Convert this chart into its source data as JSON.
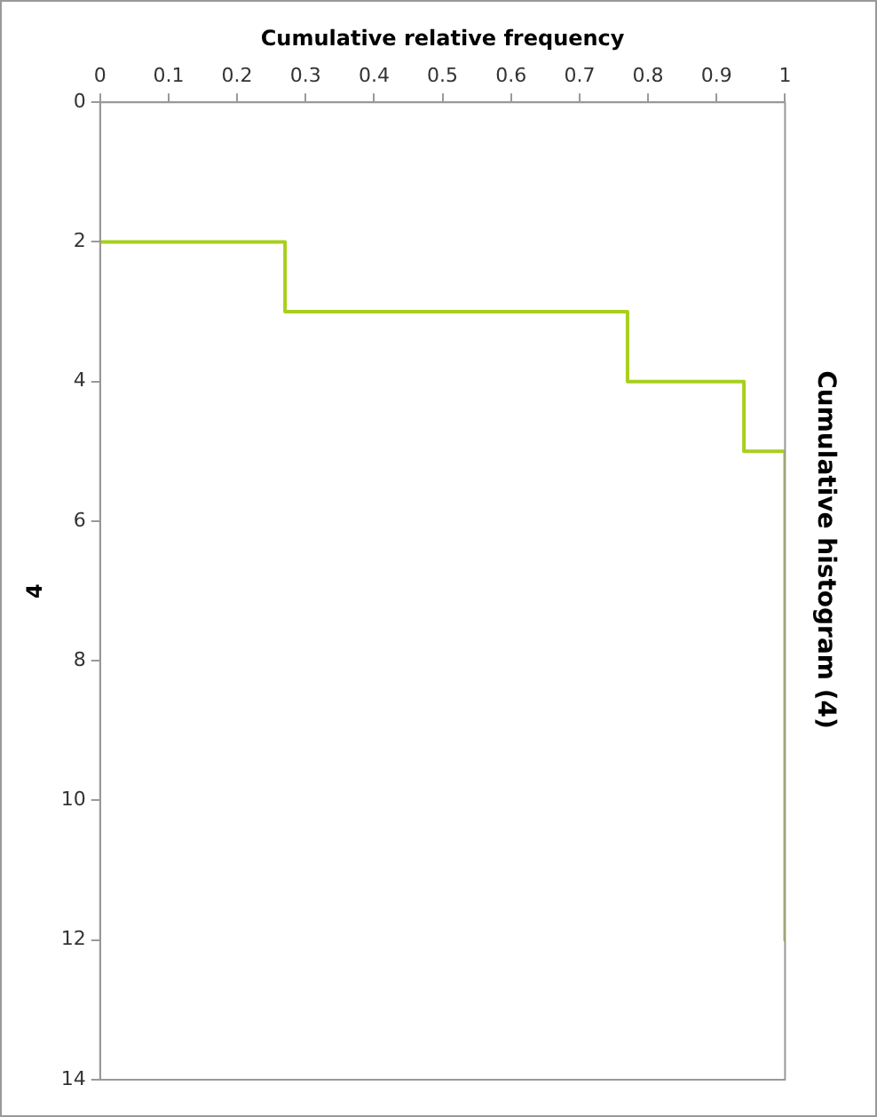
{
  "chart_data": {
    "type": "line",
    "title": "Cumulative histogram (4)",
    "xlabel": "Cumulative relative frequency",
    "ylabel": "4",
    "x": [
      0,
      0.27,
      0.27,
      0.77,
      0.77,
      0.94,
      0.94,
      1,
      1
    ],
    "series": [
      {
        "color": "#a8cf1e",
        "values": [
          2,
          2,
          3,
          3,
          4,
          4,
          5,
          5,
          12
        ]
      }
    ],
    "xlim": [
      0,
      1
    ],
    "xticks": [
      0,
      0.1,
      0.2,
      0.3,
      0.4,
      0.5,
      0.6,
      0.7,
      0.8,
      0.9,
      1
    ],
    "ylim": [
      14,
      0
    ],
    "yticks": [
      0,
      2,
      4,
      6,
      8,
      10,
      12,
      14
    ],
    "grid": false,
    "legend": false
  }
}
